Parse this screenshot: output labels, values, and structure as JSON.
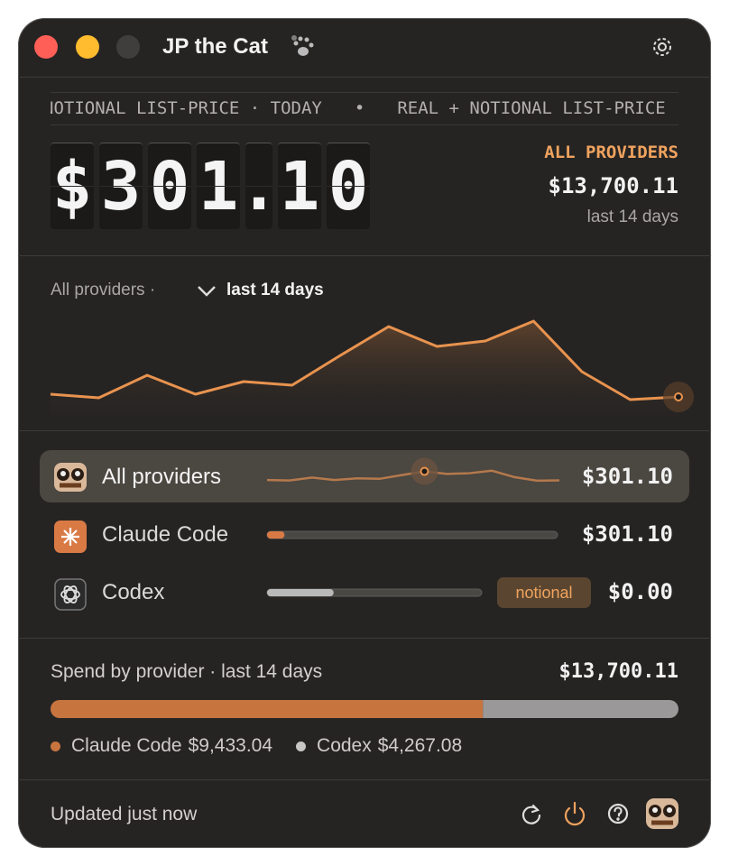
{
  "window": {
    "title": "JP the Cat"
  },
  "ticker": [
    "NOTIONAL LIST-PRICE · TODAY",
    "•",
    "REAL + NOTIONAL LIST-PRICE"
  ],
  "hero": {
    "tiles": [
      "$",
      "3",
      "0",
      "1",
      ".",
      "1",
      "0"
    ],
    "label": "ALL PROVIDERS",
    "total": "$13,700.11",
    "period": "last 14 days"
  },
  "trend": {
    "scope": "All providers ·",
    "period": "last 14 days",
    "values": [
      23,
      19,
      44,
      23,
      37,
      33,
      66,
      98,
      76,
      82,
      104,
      48,
      17,
      20
    ],
    "ylim": [
      0,
      110
    ],
    "color": "#e8934f"
  },
  "providers": [
    {
      "name": "All providers",
      "amount": "$301.10"
    },
    {
      "name": "Claude Code",
      "amount": "$301.10",
      "bar": 0.06,
      "color": "#d97a45"
    },
    {
      "name": "Codex",
      "amount": "$0.00",
      "bar": 0.31,
      "badge": "notional",
      "color": "#b9b9b9"
    }
  ],
  "spend": {
    "title": "Spend by provider · last 14 days",
    "total": "$13,700.11",
    "segments": [
      {
        "name": "Claude Code",
        "value": 9433.04,
        "value_label": "$9,433.04",
        "color": "#c8743f"
      },
      {
        "name": "Codex",
        "value": 4267.08,
        "value_label": "$4,267.08",
        "color": "#9a9898"
      }
    ]
  },
  "footer": {
    "status": "Updated just now"
  }
}
